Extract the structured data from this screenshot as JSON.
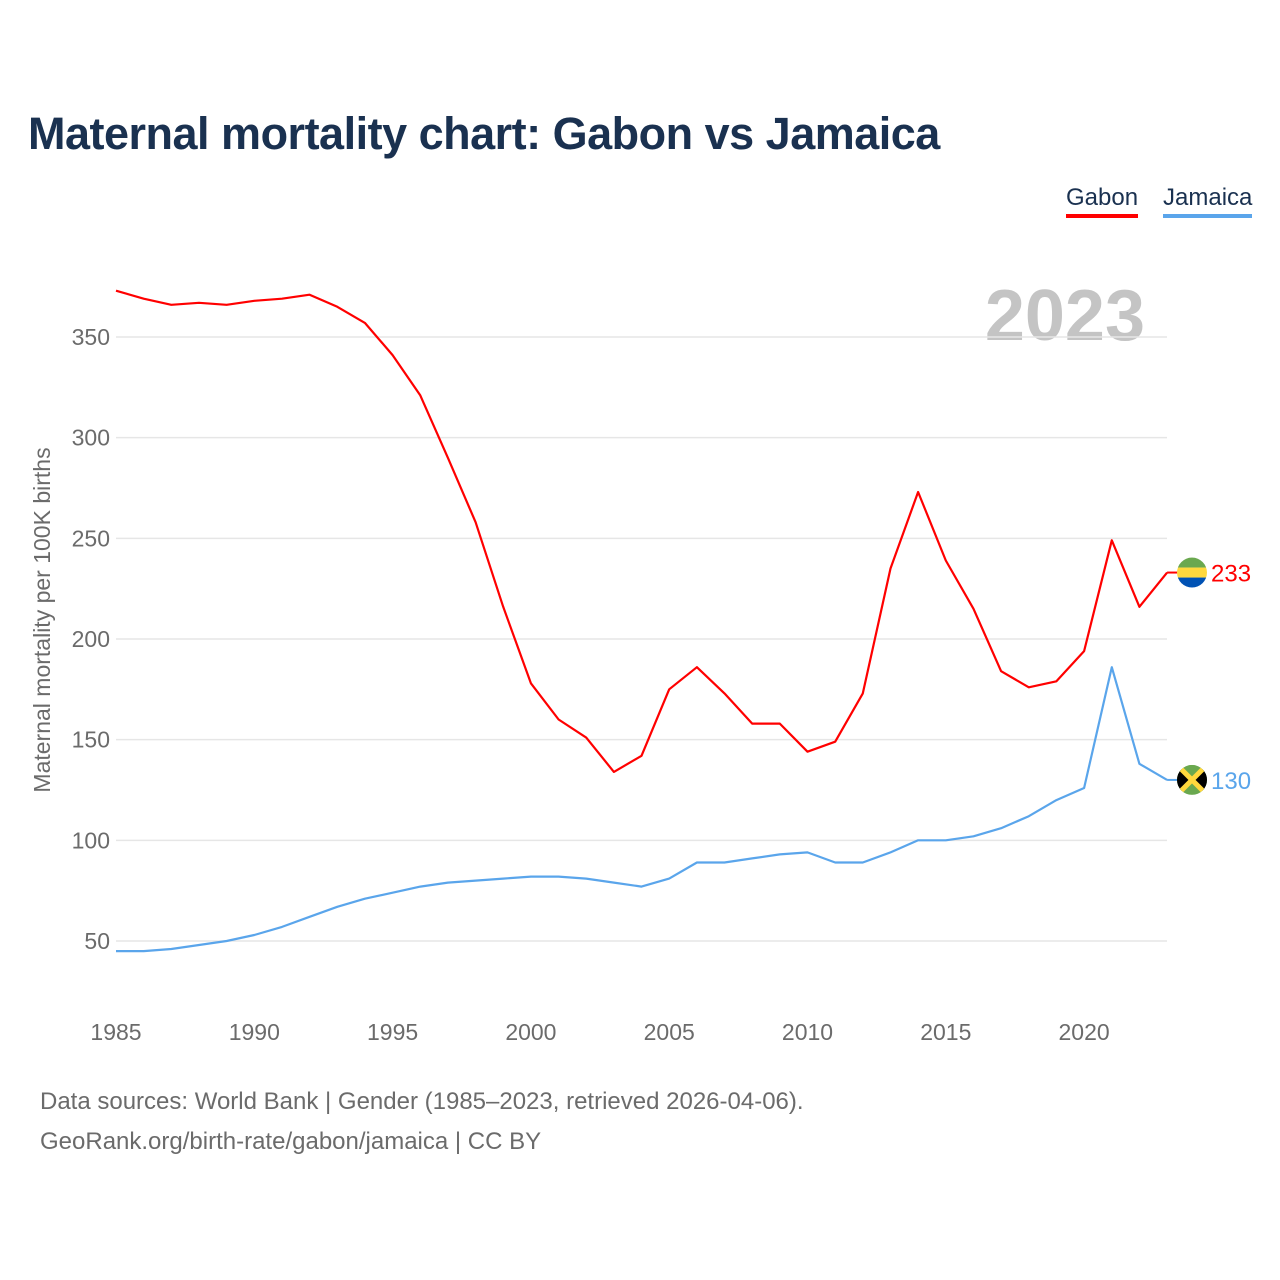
{
  "title": "Maternal mortality chart: Gabon vs Jamaica",
  "legend": [
    {
      "label": "Gabon",
      "color": "#ff0000"
    },
    {
      "label": "Jamaica",
      "color": "#5aa5eb"
    }
  ],
  "year_label": "2023",
  "footer": {
    "line1": "Data sources: World Bank | Gender (1985–2023, retrieved 2026-04-06).",
    "line2": "GeoRank.org/birth-rate/gabon/jamaica | CC BY"
  },
  "chart_data": {
    "type": "line",
    "title": "Maternal mortality chart: Gabon vs Jamaica",
    "xlabel": "",
    "ylabel": "Maternal mortality per 100K births",
    "xlim": [
      1985,
      2023
    ],
    "ylim": [
      20,
      390
    ],
    "xticks": [
      1985,
      1990,
      1995,
      2000,
      2005,
      2010,
      2015,
      2020
    ],
    "yticks": [
      50,
      100,
      150,
      200,
      250,
      300,
      350
    ],
    "grid": true,
    "legend_position": "top-right",
    "x": [
      1985,
      1986,
      1987,
      1988,
      1989,
      1990,
      1991,
      1992,
      1993,
      1994,
      1995,
      1996,
      1997,
      1998,
      1999,
      2000,
      2001,
      2002,
      2003,
      2004,
      2005,
      2006,
      2007,
      2008,
      2009,
      2010,
      2011,
      2012,
      2013,
      2014,
      2015,
      2016,
      2017,
      2018,
      2019,
      2020,
      2021,
      2022,
      2023
    ],
    "series": [
      {
        "name": "Gabon",
        "color": "#ff0000",
        "end_label": "233",
        "values": [
          373,
          369,
          366,
          367,
          366,
          368,
          369,
          371,
          365,
          357,
          341,
          321,
          290,
          258,
          216,
          178,
          160,
          151,
          134,
          142,
          175,
          186,
          173,
          158,
          158,
          144,
          149,
          173,
          235,
          273,
          239,
          215,
          184,
          176,
          179,
          194,
          249,
          216,
          233
        ]
      },
      {
        "name": "Jamaica",
        "color": "#5aa5eb",
        "end_label": "130",
        "values": [
          45,
          45,
          46,
          48,
          50,
          53,
          57,
          62,
          67,
          71,
          74,
          77,
          79,
          80,
          81,
          82,
          82,
          81,
          79,
          77,
          81,
          89,
          89,
          91,
          93,
          94,
          89,
          89,
          94,
          100,
          100,
          102,
          106,
          112,
          120,
          126,
          186,
          138,
          130
        ]
      }
    ]
  }
}
